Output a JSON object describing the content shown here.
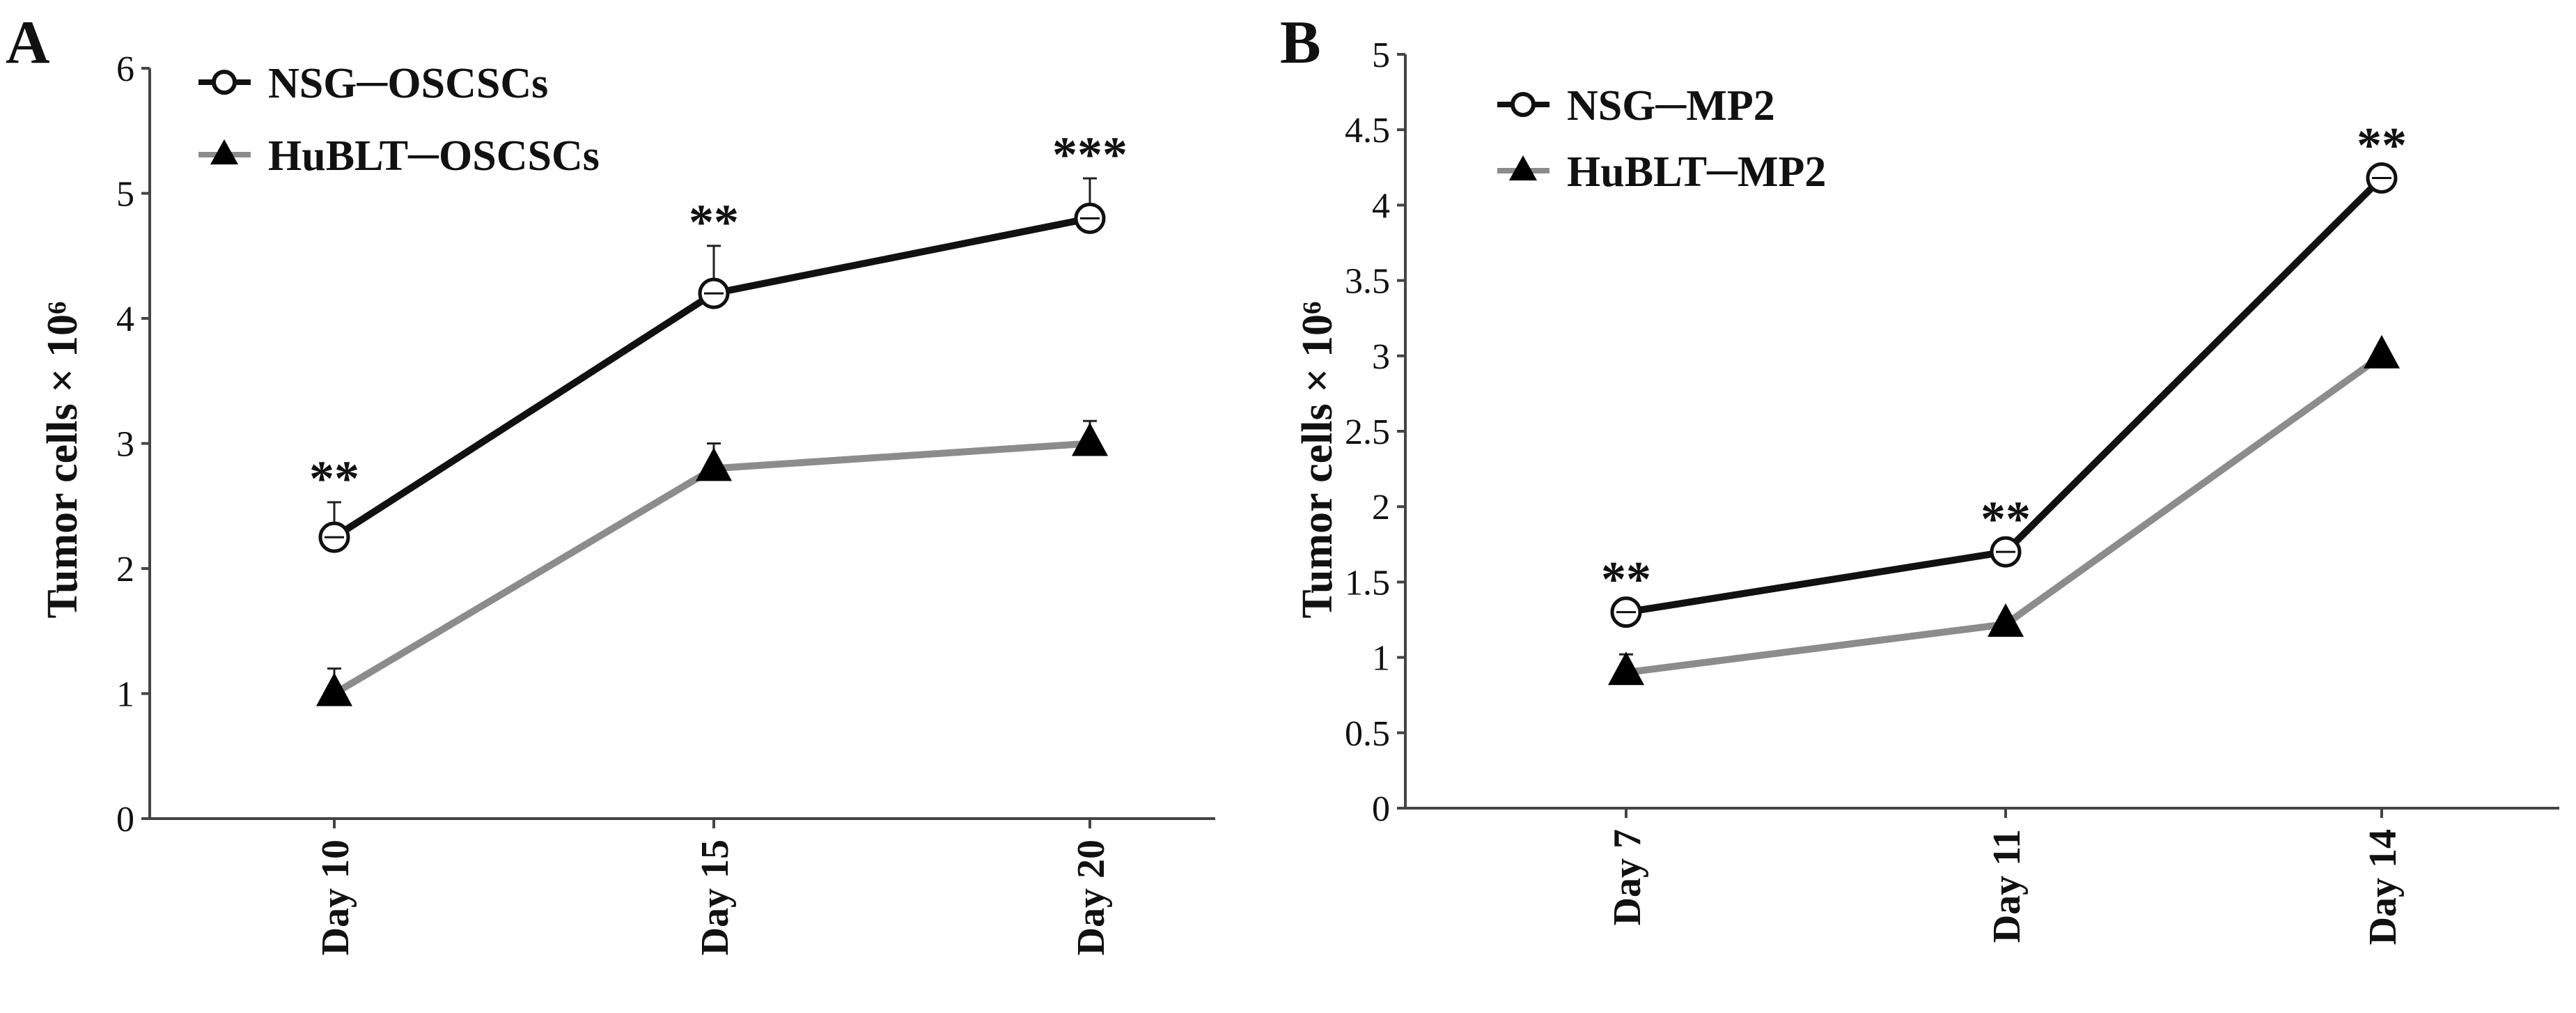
{
  "chart_data": [
    {
      "panel": "A",
      "type": "line",
      "categories": [
        "Day 10",
        "Day 15",
        "Day 20"
      ],
      "ylabel": "Tumor cells × 10⁶",
      "ylim": [
        0,
        6
      ],
      "yticks": [
        "0",
        "1",
        "2",
        "3",
        "4",
        "5",
        "6"
      ],
      "grid": false,
      "legend_position": "top-left",
      "series": [
        {
          "name": "NSG─OSCSCs",
          "marker": "open-circle",
          "color": "#111111",
          "values": [
            2.25,
            4.2,
            4.8
          ],
          "errors": [
            0.28,
            0.38,
            0.32
          ]
        },
        {
          "name": "HuBLT─OSCSCs",
          "marker": "filled-triangle",
          "color": "#8c8c8c",
          "values": [
            1.0,
            2.8,
            3.0
          ],
          "errors": [
            0.2,
            0.2,
            0.18
          ]
        }
      ],
      "annotations": [
        "**",
        "**",
        "***"
      ]
    },
    {
      "panel": "B",
      "type": "line",
      "categories": [
        "Day 7",
        "Day 11",
        "Day 14"
      ],
      "ylabel": "Tumor cells × 10⁶",
      "ylim": [
        0,
        5
      ],
      "yticks": [
        "0",
        "0.5",
        "1",
        "1.5",
        "2",
        "2.5",
        "3",
        "3.5",
        "4",
        "4.5",
        "5"
      ],
      "grid": false,
      "legend_position": "top-left",
      "series": [
        {
          "name": "NSG─MP2",
          "marker": "open-circle",
          "color": "#111111",
          "values": [
            1.3,
            1.7,
            4.18
          ],
          "errors": [
            0.06,
            0.06,
            0.06
          ]
        },
        {
          "name": "HuBLT─MP2",
          "marker": "filled-triangle",
          "color": "#8c8c8c",
          "values": [
            0.9,
            1.22,
            3.0
          ],
          "errors": [
            0.12,
            0.05,
            0.05
          ]
        }
      ],
      "annotations": [
        "**",
        "**",
        "**"
      ]
    }
  ]
}
